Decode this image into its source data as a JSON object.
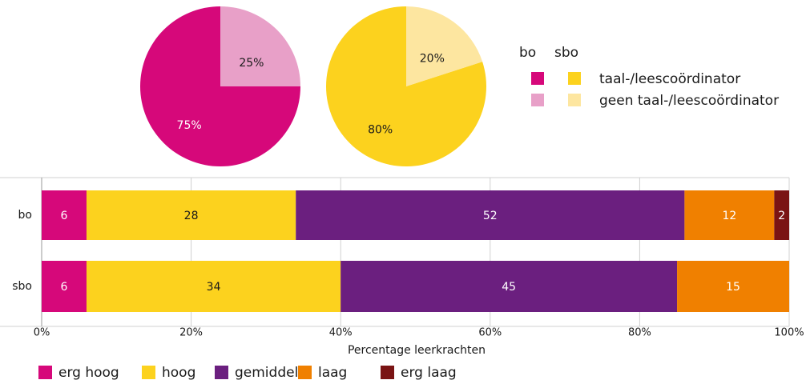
{
  "chart_data": [
    {
      "type": "pie",
      "categories": [
        "taal-/leescoördinator",
        "geen taal-/leescoördinator"
      ],
      "series": [
        {
          "name": "bo",
          "colors": [
            "#d6087a",
            "#e8a0c8"
          ],
          "values": [
            75,
            25
          ],
          "value_labels": [
            "75%",
            "25%"
          ]
        },
        {
          "name": "sbo",
          "colors": [
            "#fcd21e",
            "#fde6a0"
          ],
          "values": [
            80,
            20
          ],
          "value_labels": [
            "80%",
            "20%"
          ]
        }
      ]
    },
    {
      "type": "stacked_bar",
      "orientation": "horizontal",
      "categories": [
        "bo",
        "sbo"
      ],
      "xlabel": "Percentage leerkrachten",
      "xlim": [
        0,
        100
      ],
      "xticks": [
        {
          "value": 0,
          "label": "0%"
        },
        {
          "value": 20,
          "label": "20%"
        },
        {
          "value": 40,
          "label": "40%"
        },
        {
          "value": 60,
          "label": "60%"
        },
        {
          "value": 80,
          "label": "80%"
        },
        {
          "value": 100,
          "label": "100%"
        }
      ],
      "grid": true,
      "legend": "bottom",
      "series": [
        {
          "name": "erg hoog",
          "color": "#d6087a",
          "label_color": "#ffffff",
          "values": [
            6,
            6
          ]
        },
        {
          "name": "hoog",
          "color": "#fcd21e",
          "label_color": "#1a1a1a",
          "values": [
            28,
            34
          ]
        },
        {
          "name": "gemiddeld",
          "color": "#6b1f7f",
          "label_color": "#ffffff",
          "values": [
            52,
            45
          ]
        },
        {
          "name": "laag",
          "color": "#f08000",
          "label_color": "#ffffff",
          "values": [
            12,
            15
          ]
        },
        {
          "name": "erg laag",
          "color": "#7a1414",
          "label_color": "#ffffff",
          "values": [
            2,
            null
          ]
        }
      ]
    }
  ]
}
